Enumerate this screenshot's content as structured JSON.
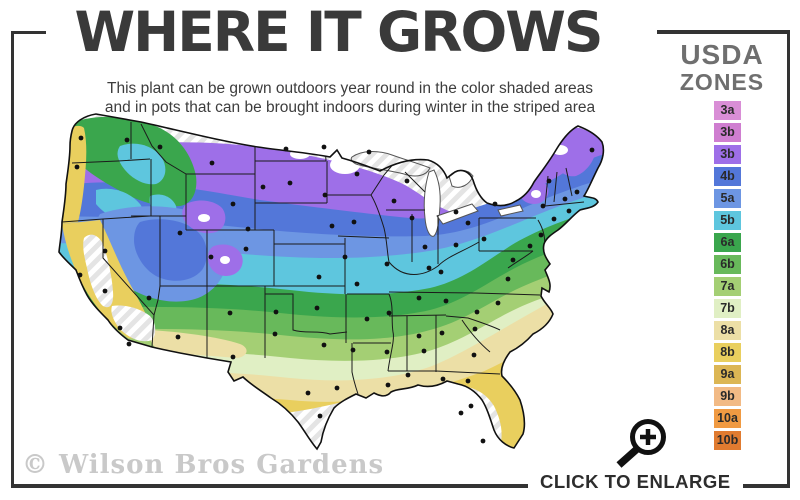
{
  "header": {
    "title": "WHERE IT GROWS",
    "subtitle_line1": "This plant can be grown outdoors year round in the color shaded areas",
    "subtitle_line2": "and in pots that can be brought indoors during winter in the striped area"
  },
  "legend": {
    "title_line1": "USDA",
    "title_line2": "ZONES",
    "zones": [
      {
        "label": "3a",
        "color": "#d98ed6"
      },
      {
        "label": "3b",
        "color": "#cf7ed0"
      },
      {
        "label": "3b",
        "color": "#9e6fe8"
      },
      {
        "label": "4b",
        "color": "#5377d9"
      },
      {
        "label": "5a",
        "color": "#6d96e3"
      },
      {
        "label": "5b",
        "color": "#5ec6de"
      },
      {
        "label": "6a",
        "color": "#3aa64d"
      },
      {
        "label": "6b",
        "color": "#68b95b"
      },
      {
        "label": "7a",
        "color": "#a4cf74"
      },
      {
        "label": "7b",
        "color": "#e0efc4"
      },
      {
        "label": "8a",
        "color": "#ecdfa6"
      },
      {
        "label": "8b",
        "color": "#e9cf5e"
      },
      {
        "label": "9a",
        "color": "#dcb654"
      },
      {
        "label": "9b",
        "color": "#f2ba85"
      },
      {
        "label": "10a",
        "color": "#f09a42"
      },
      {
        "label": "10b",
        "color": "#e07b30"
      }
    ]
  },
  "map": {
    "watermark": "© Wilson Bros Gardens",
    "striped_area_color": "#e4e4e4",
    "zone_bands_north_to_south": [
      "striped",
      "3b",
      "4b",
      "5a",
      "5b",
      "6a",
      "6b",
      "7a",
      "7b",
      "8a",
      "8b",
      "striped"
    ]
  },
  "enlarge": {
    "label": "CLICK TO ENLARGE"
  }
}
